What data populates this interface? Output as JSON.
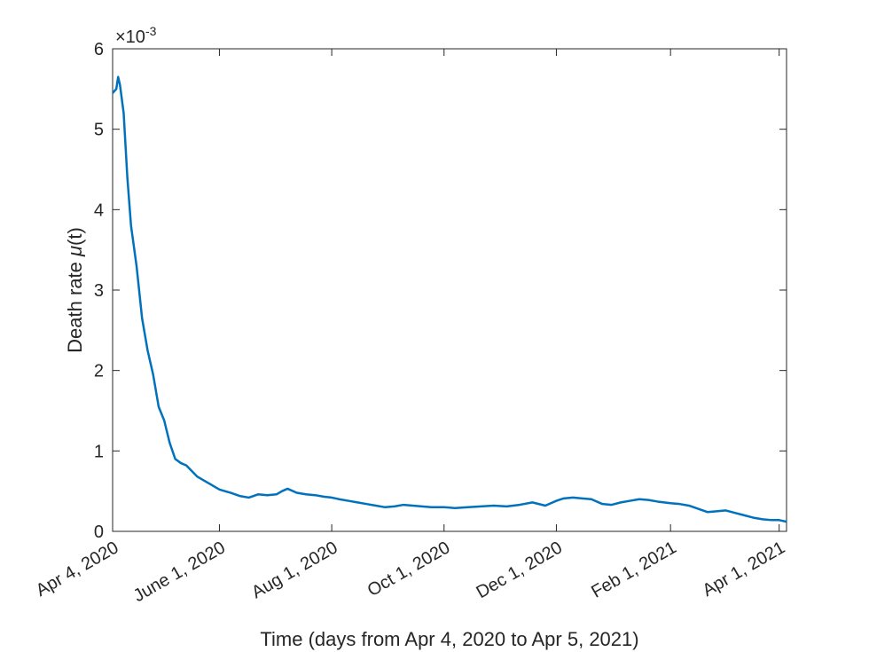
{
  "chart_data": {
    "type": "line",
    "title": "",
    "xlabel": "Time (days from Apr 4, 2020 to Apr 5, 2021)",
    "ylabel_prefix": "Death rate ",
    "ylabel_symbol": "μ",
    "ylabel_suffix": "(t)",
    "y_exponent_base": "×10",
    "y_exponent_power": "-3",
    "x_start_date": "2020-04-04",
    "x_end_date": "2021-04-05",
    "xlim": [
      "2020-04-04",
      "2021-04-05"
    ],
    "ylim": [
      0,
      6
    ],
    "grid": false,
    "x_ticks": [
      {
        "date": "2020-04-04",
        "label": "Apr 4, 2020"
      },
      {
        "date": "2020-06-01",
        "label": "June 1, 2020"
      },
      {
        "date": "2020-08-01",
        "label": "Aug 1, 2020"
      },
      {
        "date": "2020-10-01",
        "label": "Oct 1, 2020"
      },
      {
        "date": "2020-12-01",
        "label": "Dec 1, 2020"
      },
      {
        "date": "2021-02-01",
        "label": "Feb 1, 2021"
      },
      {
        "date": "2021-04-01",
        "label": "Apr 1, 2021"
      }
    ],
    "y_ticks": [
      {
        "value": 0,
        "label": "0"
      },
      {
        "value": 1,
        "label": "1"
      },
      {
        "value": 2,
        "label": "2"
      },
      {
        "value": 3,
        "label": "3"
      },
      {
        "value": 4,
        "label": "4"
      },
      {
        "value": 5,
        "label": "5"
      },
      {
        "value": 6,
        "label": "6"
      }
    ],
    "series": [
      {
        "color": "#0072BD",
        "x": [
          "2020-04-04",
          "2020-04-06",
          "2020-04-07",
          "2020-04-08",
          "2020-04-10",
          "2020-04-12",
          "2020-04-14",
          "2020-04-17",
          "2020-04-20",
          "2020-04-23",
          "2020-04-26",
          "2020-04-29",
          "2020-05-02",
          "2020-05-05",
          "2020-05-08",
          "2020-05-11",
          "2020-05-14",
          "2020-05-17",
          "2020-05-20",
          "2020-05-23",
          "2020-05-26",
          "2020-05-29",
          "2020-06-01",
          "2020-06-04",
          "2020-06-07",
          "2020-06-12",
          "2020-06-17",
          "2020-06-22",
          "2020-06-27",
          "2020-07-02",
          "2020-07-05",
          "2020-07-08",
          "2020-07-13",
          "2020-07-18",
          "2020-07-23",
          "2020-07-28",
          "2020-08-01",
          "2020-08-05",
          "2020-08-10",
          "2020-08-15",
          "2020-08-20",
          "2020-08-25",
          "2020-08-30",
          "2020-09-04",
          "2020-09-09",
          "2020-09-14",
          "2020-09-19",
          "2020-09-24",
          "2020-10-01",
          "2020-10-07",
          "2020-10-14",
          "2020-10-21",
          "2020-10-28",
          "2020-11-04",
          "2020-11-11",
          "2020-11-18",
          "2020-11-25",
          "2020-12-01",
          "2020-12-05",
          "2020-12-10",
          "2020-12-15",
          "2020-12-20",
          "2020-12-26",
          "2020-12-31",
          "2021-01-05",
          "2021-01-10",
          "2021-01-15",
          "2021-01-20",
          "2021-01-25",
          "2021-02-01",
          "2021-02-06",
          "2021-02-11",
          "2021-02-16",
          "2021-02-21",
          "2021-02-26",
          "2021-03-03",
          "2021-03-08",
          "2021-03-13",
          "2021-03-18",
          "2021-03-23",
          "2021-03-28",
          "2021-04-01",
          "2021-04-05"
        ],
        "values": [
          5.45,
          5.5,
          5.65,
          5.55,
          5.2,
          4.4,
          3.8,
          3.3,
          2.65,
          2.25,
          1.95,
          1.55,
          1.38,
          1.1,
          0.9,
          0.85,
          0.82,
          0.75,
          0.68,
          0.64,
          0.6,
          0.56,
          0.52,
          0.5,
          0.48,
          0.44,
          0.42,
          0.46,
          0.45,
          0.46,
          0.5,
          0.53,
          0.48,
          0.46,
          0.45,
          0.43,
          0.42,
          0.4,
          0.38,
          0.36,
          0.34,
          0.32,
          0.3,
          0.31,
          0.33,
          0.32,
          0.31,
          0.3,
          0.3,
          0.29,
          0.3,
          0.31,
          0.32,
          0.31,
          0.33,
          0.36,
          0.32,
          0.38,
          0.41,
          0.42,
          0.41,
          0.4,
          0.34,
          0.33,
          0.36,
          0.38,
          0.4,
          0.39,
          0.37,
          0.35,
          0.34,
          0.32,
          0.28,
          0.24,
          0.25,
          0.26,
          0.23,
          0.2,
          0.17,
          0.15,
          0.14,
          0.14,
          0.12
        ]
      }
    ]
  }
}
